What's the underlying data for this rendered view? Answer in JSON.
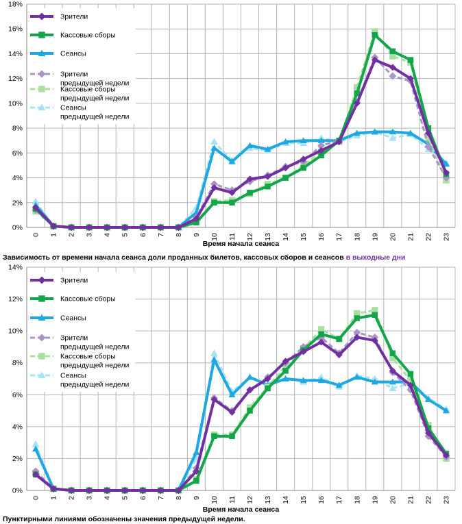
{
  "colors": {
    "viewers": "#7030a0",
    "revenue": "#12a54a",
    "sessions": "#1ea7e1",
    "viewers_prev": "#a994c8",
    "revenue_prev": "#a9e0a0",
    "sessions_prev": "#a4e2f4",
    "grid": "#b4b4b4"
  },
  "caption_weekend_prefix": "Зависимость от времени начала сеанса доли проданных билетов, кассовых сборов и сеансов",
  "caption_weekend_accent": "в выходные дни",
  "footnote": "Пунктирными линиями обозначены значения предыдущей недели.",
  "chart_data": [
    {
      "type": "line",
      "title": "",
      "xlabel": "Время начала сеанса",
      "ylabel": "",
      "ylim": [
        0,
        18
      ],
      "ytick_step": 2,
      "ytick_labels": [
        "0%",
        "2%",
        "4%",
        "6%",
        "8%",
        "10%",
        "12%",
        "14%",
        "16%",
        "18%"
      ],
      "categories": [
        "0",
        "1",
        "2",
        "3",
        "4",
        "5",
        "6",
        "7",
        "8",
        "9",
        "10",
        "11",
        "12",
        "13",
        "14",
        "15",
        "16",
        "17",
        "18",
        "19",
        "20",
        "21",
        "22",
        "23"
      ],
      "legend_position": "top-left",
      "series": [
        {
          "key": "viewers",
          "name": "Зрители",
          "dashed": false,
          "marker": "diamond",
          "values": [
            1.6,
            0.1,
            0.0,
            0.0,
            0.0,
            0.0,
            0.0,
            0.0,
            0.0,
            0.7,
            3.2,
            2.8,
            3.9,
            4.1,
            4.8,
            5.5,
            6.2,
            6.9,
            10.0,
            13.5,
            12.9,
            12.0,
            7.6,
            4.4
          ]
        },
        {
          "key": "revenue",
          "name": "Кассовые сборы",
          "dashed": false,
          "marker": "square",
          "values": [
            1.5,
            0.1,
            0.0,
            0.0,
            0.0,
            0.0,
            0.0,
            0.0,
            0.0,
            0.4,
            2.0,
            2.0,
            2.8,
            3.3,
            4.0,
            4.8,
            5.8,
            7.0,
            10.8,
            15.5,
            14.2,
            13.5,
            8.0,
            4.3
          ]
        },
        {
          "key": "sessions",
          "name": "Сеансы",
          "dashed": false,
          "marker": "triangle",
          "values": [
            1.8,
            0.1,
            0.0,
            0.0,
            0.0,
            0.0,
            0.0,
            0.0,
            0.0,
            1.2,
            6.4,
            5.3,
            6.6,
            6.3,
            6.9,
            7.0,
            7.0,
            7.0,
            7.6,
            7.7,
            7.7,
            7.6,
            6.7,
            5.1
          ]
        },
        {
          "key": "viewers_prev",
          "name": "Зрители\nпредыдущей недели",
          "dashed": true,
          "marker": "diamond",
          "values": [
            1.4,
            0.1,
            0.0,
            0.0,
            0.0,
            0.0,
            0.0,
            0.0,
            0.0,
            0.8,
            3.5,
            3.0,
            3.7,
            4.2,
            4.9,
            5.3,
            6.6,
            7.0,
            10.1,
            13.7,
            12.2,
            11.8,
            6.5,
            4.0
          ]
        },
        {
          "key": "revenue_prev",
          "name": "Кассовые сборы\nпредыдущей недели",
          "dashed": true,
          "marker": "square",
          "values": [
            1.3,
            0.1,
            0.0,
            0.0,
            0.0,
            0.0,
            0.0,
            0.0,
            0.0,
            0.5,
            2.1,
            2.2,
            2.7,
            3.5,
            4.0,
            5.0,
            6.1,
            6.9,
            11.3,
            15.8,
            13.8,
            13.3,
            7.2,
            3.8
          ]
        },
        {
          "key": "sessions_prev",
          "name": "Сеансы\nпредыдущей недели",
          "dashed": true,
          "marker": "triangle",
          "values": [
            2.1,
            0.1,
            0.0,
            0.0,
            0.0,
            0.0,
            0.0,
            0.0,
            0.0,
            1.6,
            6.9,
            5.4,
            6.4,
            6.2,
            6.8,
            6.8,
            7.2,
            6.9,
            7.4,
            7.7,
            7.2,
            7.5,
            6.3,
            5.2
          ]
        }
      ]
    },
    {
      "type": "line",
      "title": "",
      "xlabel": "Время начала сеанса",
      "ylabel": "",
      "ylim": [
        0,
        14
      ],
      "ytick_step": 2,
      "ytick_labels": [
        "0%",
        "2%",
        "4%",
        "6%",
        "8%",
        "10%",
        "12%",
        "14%"
      ],
      "categories": [
        "0",
        "1",
        "2",
        "3",
        "4",
        "5",
        "6",
        "7",
        "8",
        "9",
        "10",
        "11",
        "12",
        "13",
        "14",
        "15",
        "16",
        "17",
        "18",
        "19",
        "20",
        "21",
        "22",
        "23"
      ],
      "legend_position": "top-left",
      "series": [
        {
          "key": "viewers",
          "name": "Зрители",
          "dashed": false,
          "marker": "diamond",
          "values": [
            1.0,
            0.1,
            0.0,
            0.0,
            0.0,
            0.0,
            0.0,
            0.0,
            0.0,
            1.2,
            5.7,
            4.9,
            6.3,
            7.0,
            8.1,
            8.7,
            9.3,
            8.5,
            9.6,
            9.4,
            7.5,
            6.6,
            3.6,
            2.2
          ]
        },
        {
          "key": "revenue",
          "name": "Кассовые сборы",
          "dashed": false,
          "marker": "square",
          "values": [
            1.0,
            0.1,
            0.0,
            0.0,
            0.0,
            0.0,
            0.0,
            0.0,
            0.0,
            0.6,
            3.4,
            3.4,
            5.0,
            6.4,
            7.5,
            8.8,
            9.8,
            9.5,
            10.8,
            11.0,
            8.6,
            7.3,
            3.9,
            2.3
          ]
        },
        {
          "key": "sessions",
          "name": "Сеансы",
          "dashed": false,
          "marker": "triangle",
          "values": [
            2.6,
            0.1,
            0.0,
            0.0,
            0.0,
            0.0,
            0.0,
            0.0,
            0.0,
            2.4,
            8.2,
            6.0,
            7.1,
            6.6,
            7.0,
            6.9,
            6.9,
            6.6,
            7.1,
            6.8,
            6.8,
            6.8,
            5.7,
            5.0
          ]
        },
        {
          "key": "viewers_prev",
          "name": "Зрители\nпредыдущей недели",
          "dashed": true,
          "marker": "diamond",
          "values": [
            1.2,
            0.1,
            0.0,
            0.0,
            0.0,
            0.0,
            0.0,
            0.0,
            0.0,
            1.4,
            5.8,
            5.0,
            6.3,
            7.1,
            8.0,
            9.0,
            9.6,
            8.6,
            9.9,
            9.6,
            7.4,
            6.3,
            3.4,
            2.1
          ]
        },
        {
          "key": "revenue_prev",
          "name": "Кассовые сборы\nпредыдущей недели",
          "dashed": true,
          "marker": "square",
          "values": [
            1.1,
            0.1,
            0.0,
            0.0,
            0.0,
            0.0,
            0.0,
            0.0,
            0.0,
            0.7,
            3.5,
            3.5,
            5.2,
            6.5,
            7.8,
            8.9,
            10.1,
            9.5,
            11.1,
            11.3,
            8.3,
            6.9,
            4.1,
            2.0
          ]
        },
        {
          "key": "sessions_prev",
          "name": "Сеансы\nпредыдущей недели",
          "dashed": true,
          "marker": "triangle",
          "values": [
            2.9,
            0.1,
            0.0,
            0.0,
            0.0,
            0.0,
            0.0,
            0.0,
            0.0,
            2.0,
            8.6,
            6.2,
            7.1,
            6.7,
            7.0,
            6.8,
            7.1,
            6.5,
            7.2,
            7.0,
            6.4,
            6.7,
            5.8,
            5.1
          ]
        }
      ]
    }
  ]
}
